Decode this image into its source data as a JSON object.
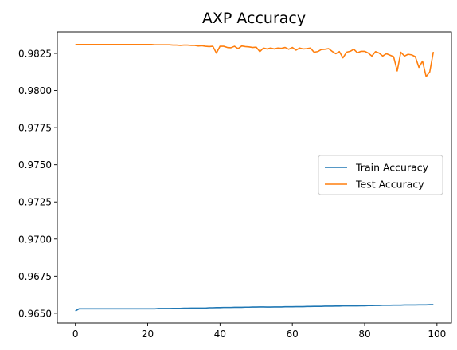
{
  "chart_data": {
    "type": "line",
    "title": "AXP Accuracy",
    "xlabel": "",
    "ylabel": "",
    "xlim": [
      -5,
      104
    ],
    "ylim": [
      0.96435,
      0.98395
    ],
    "xticks": [
      0,
      20,
      40,
      60,
      80,
      100
    ],
    "yticks": [
      0.965,
      0.9675,
      0.97,
      0.9725,
      0.975,
      0.9775,
      0.98,
      0.9825
    ],
    "ytick_labels": [
      "0.9650",
      "0.9675",
      "0.9700",
      "0.9725",
      "0.9750",
      "0.9775",
      "0.9800",
      "0.9825"
    ],
    "grid": false,
    "legend_position": "center-right",
    "series": [
      {
        "name": "Train Accuracy",
        "color": "#1f77b4",
        "x": [
          0,
          1,
          2,
          3,
          4,
          5,
          6,
          7,
          8,
          9,
          10,
          11,
          12,
          13,
          14,
          15,
          16,
          17,
          18,
          19,
          20,
          21,
          22,
          23,
          24,
          25,
          26,
          27,
          28,
          29,
          30,
          31,
          32,
          33,
          34,
          35,
          36,
          37,
          38,
          39,
          40,
          41,
          42,
          43,
          44,
          45,
          46,
          47,
          48,
          49,
          50,
          51,
          52,
          53,
          54,
          55,
          56,
          57,
          58,
          59,
          60,
          61,
          62,
          63,
          64,
          65,
          66,
          67,
          68,
          69,
          70,
          71,
          72,
          73,
          74,
          75,
          76,
          77,
          78,
          79,
          80,
          81,
          82,
          83,
          84,
          85,
          86,
          87,
          88,
          89,
          90,
          91,
          92,
          93,
          94,
          95,
          96,
          97,
          98,
          99
        ],
        "values": [
          0.96515,
          0.9653,
          0.9653,
          0.9653,
          0.9653,
          0.9653,
          0.9653,
          0.9653,
          0.9653,
          0.9653,
          0.9653,
          0.9653,
          0.9653,
          0.9653,
          0.9653,
          0.9653,
          0.9653,
          0.9653,
          0.9653,
          0.9653,
          0.9653,
          0.9653,
          0.9653,
          0.96532,
          0.96532,
          0.96532,
          0.96532,
          0.96533,
          0.96533,
          0.96533,
          0.96534,
          0.96534,
          0.96535,
          0.96535,
          0.96535,
          0.96535,
          0.96535,
          0.96537,
          0.96537,
          0.96538,
          0.96538,
          0.96539,
          0.96539,
          0.96539,
          0.9654,
          0.9654,
          0.9654,
          0.96541,
          0.96541,
          0.96542,
          0.96542,
          0.96543,
          0.96543,
          0.96542,
          0.96542,
          0.96543,
          0.96543,
          0.96543,
          0.96544,
          0.96544,
          0.96544,
          0.96545,
          0.96545,
          0.96545,
          0.96546,
          0.96546,
          0.96547,
          0.96547,
          0.96547,
          0.96548,
          0.96548,
          0.96548,
          0.96549,
          0.96549,
          0.9655,
          0.9655,
          0.9655,
          0.9655,
          0.9655,
          0.96551,
          0.96551,
          0.96552,
          0.96552,
          0.96553,
          0.96553,
          0.96554,
          0.96554,
          0.96554,
          0.96555,
          0.96555,
          0.96555,
          0.96556,
          0.96556,
          0.96556,
          0.96556,
          0.96557,
          0.96557,
          0.96557,
          0.96558,
          0.96558
        ]
      },
      {
        "name": "Test Accuracy",
        "color": "#ff7f0e",
        "x": [
          0,
          1,
          2,
          3,
          4,
          5,
          6,
          7,
          8,
          9,
          10,
          11,
          12,
          13,
          14,
          15,
          16,
          17,
          18,
          19,
          20,
          21,
          22,
          23,
          24,
          25,
          26,
          27,
          28,
          29,
          30,
          31,
          32,
          33,
          34,
          35,
          36,
          37,
          38,
          39,
          40,
          41,
          42,
          43,
          44,
          45,
          46,
          47,
          48,
          49,
          50,
          51,
          52,
          53,
          54,
          55,
          56,
          57,
          58,
          59,
          60,
          61,
          62,
          63,
          64,
          65,
          66,
          67,
          68,
          69,
          70,
          71,
          72,
          73,
          74,
          75,
          76,
          77,
          78,
          79,
          80,
          81,
          82,
          83,
          84,
          85,
          86,
          87,
          88,
          89,
          90,
          91,
          92,
          93,
          94,
          95,
          96,
          97,
          98,
          99
        ],
        "values": [
          0.9831,
          0.9831,
          0.9831,
          0.9831,
          0.9831,
          0.9831,
          0.9831,
          0.9831,
          0.9831,
          0.9831,
          0.9831,
          0.9831,
          0.9831,
          0.9831,
          0.9831,
          0.9831,
          0.9831,
          0.9831,
          0.9831,
          0.9831,
          0.9831,
          0.9831,
          0.98308,
          0.98308,
          0.98308,
          0.98308,
          0.98308,
          0.98306,
          0.98306,
          0.98304,
          0.98306,
          0.98306,
          0.98304,
          0.98304,
          0.983,
          0.98302,
          0.98298,
          0.98296,
          0.98298,
          0.98252,
          0.98298,
          0.98298,
          0.9829,
          0.98288,
          0.98298,
          0.98282,
          0.983,
          0.98296,
          0.98294,
          0.9829,
          0.98292,
          0.98262,
          0.98286,
          0.9828,
          0.98286,
          0.9828,
          0.98286,
          0.98284,
          0.9829,
          0.98278,
          0.9829,
          0.98272,
          0.98286,
          0.9828,
          0.98282,
          0.98286,
          0.98258,
          0.98262,
          0.98276,
          0.98278,
          0.98282,
          0.98264,
          0.98248,
          0.98262,
          0.9822,
          0.98258,
          0.98264,
          0.98278,
          0.98254,
          0.98264,
          0.98264,
          0.98252,
          0.98232,
          0.98262,
          0.98252,
          0.98232,
          0.98248,
          0.98238,
          0.98228,
          0.98132,
          0.98258,
          0.98232,
          0.98244,
          0.9824,
          0.98228,
          0.98156,
          0.98198,
          0.98094,
          0.98126,
          0.9826
        ]
      }
    ]
  }
}
